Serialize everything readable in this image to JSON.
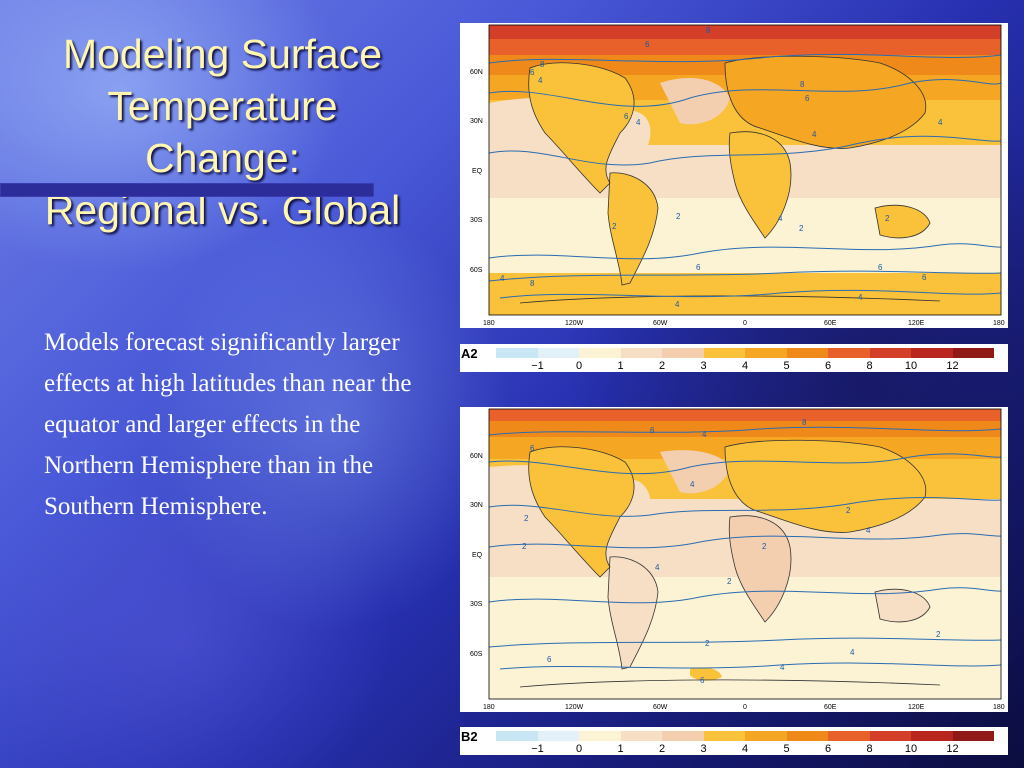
{
  "slide": {
    "title_lines": [
      "Modeling Surface",
      "Temperature",
      "Change:",
      "Regional vs. Global"
    ],
    "body_text": "Models forecast significantly larger effects at high latitudes than near the equator and larger effects in the Northern Hemisphere than in the Southern Hemisphere."
  },
  "colors": {
    "title": "#fff7b0",
    "body_text": "#ffffff",
    "contour": "#2a6cb3",
    "coast": "#333333"
  },
  "maps": [
    {
      "scenario": "A2",
      "lat_labels": [
        "60N",
        "30N",
        "EQ",
        "30S",
        "60S"
      ],
      "lon_labels": [
        "180",
        "120W",
        "60W",
        "0",
        "60E",
        "120E",
        "180"
      ],
      "contour_labels": [
        "8",
        "6",
        "8",
        "6",
        "4",
        "8",
        "6",
        "4",
        "4",
        "6",
        "4",
        "2",
        "2",
        "4",
        "2",
        "4",
        "2",
        "6",
        "8",
        "4",
        "6",
        "4",
        "6"
      ]
    },
    {
      "scenario": "B2",
      "lat_labels": [
        "60N",
        "30N",
        "EQ",
        "30S",
        "60S"
      ],
      "lon_labels": [
        "180",
        "120W",
        "60W",
        "0",
        "60E",
        "120E",
        "180"
      ],
      "contour_labels": [
        "8",
        "6",
        "4",
        "6",
        "4",
        "2",
        "2",
        "2",
        "4",
        "2",
        "2",
        "4",
        "2",
        "2",
        "4",
        "6",
        "4",
        "6"
      ]
    }
  ],
  "legend": {
    "ticks": [
      "−1",
      "0",
      "1",
      "2",
      "3",
      "4",
      "5",
      "6",
      "8",
      "10",
      "12"
    ],
    "swatches": [
      "#c9e6f5",
      "#e2f0f7",
      "#fbf3d4",
      "#f6dfc4",
      "#f3cfb0",
      "#f9c23a",
      "#f5a623",
      "#ef8a1a",
      "#e8612a",
      "#d33f28",
      "#b8261f",
      "#8f1a17"
    ]
  }
}
